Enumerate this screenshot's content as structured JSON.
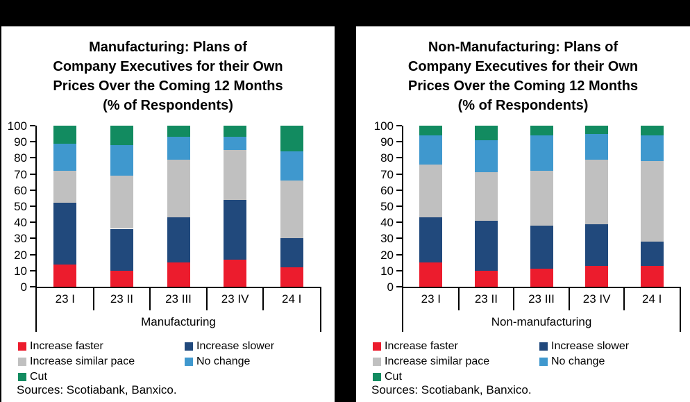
{
  "page": {
    "background": "#000000"
  },
  "legend_labels": [
    "Increase faster",
    "Increase slower",
    "Increase similar pace",
    "No change",
    "Cut"
  ],
  "series_colors": {
    "increase_faster": "#EC1C2D",
    "increase_slower": "#21497C",
    "increase_similar_pace": "#C0C0C0",
    "no_change": "#3F98CE",
    "cut": "#128B60"
  },
  "chart_data": [
    {
      "type": "bar",
      "stacked": true,
      "title_lines": [
        "Manufacturing: Plans of",
        "Company Executives for their Own",
        "Prices Over the Coming 12 Months",
        "(% of Respondents)"
      ],
      "categories": [
        "23 I",
        "23 II",
        "23 III",
        "23 IV",
        "24 I"
      ],
      "group_label": "Manufacturing",
      "ylim": [
        0,
        100
      ],
      "ytick_step": 10,
      "grid": false,
      "legend_position": "bottom-left-two-columns",
      "series": [
        {
          "name": "Increase faster",
          "color": "#EC1C2D",
          "values": [
            14,
            10,
            15,
            17,
            12
          ]
        },
        {
          "name": "Increase slower",
          "color": "#21497C",
          "values": [
            38,
            26,
            28,
            37,
            18
          ]
        },
        {
          "name": "Increase similar pace",
          "color": "#C0C0C0",
          "values": [
            20,
            33,
            36,
            31,
            36
          ]
        },
        {
          "name": "No change",
          "color": "#3F98CE",
          "values": [
            17,
            19,
            14,
            8,
            18
          ]
        },
        {
          "name": "Cut",
          "color": "#128B60",
          "values": [
            11,
            12,
            7,
            7,
            16
          ]
        }
      ],
      "sources": "Sources: Scotiabank, Banxico."
    },
    {
      "type": "bar",
      "stacked": true,
      "title_lines": [
        "Non-Manufacturing: Plans of",
        "Company Executives for their Own",
        "Prices Over the Coming 12 Months",
        "(% of Respondents)"
      ],
      "categories": [
        "23 I",
        "23 II",
        "23 III",
        "23 IV",
        "24 I"
      ],
      "group_label": "Non-manufacturing",
      "ylim": [
        0,
        100
      ],
      "ytick_step": 10,
      "grid": false,
      "legend_position": "bottom-left-two-columns",
      "series": [
        {
          "name": "Increase faster",
          "color": "#EC1C2D",
          "values": [
            15,
            10,
            11,
            13,
            13
          ]
        },
        {
          "name": "Increase slower",
          "color": "#21497C",
          "values": [
            28,
            31,
            27,
            26,
            15
          ]
        },
        {
          "name": "Increase similar pace",
          "color": "#C0C0C0",
          "values": [
            33,
            30,
            34,
            40,
            50
          ]
        },
        {
          "name": "No change",
          "color": "#3F98CE",
          "values": [
            18,
            20,
            22,
            16,
            16
          ]
        },
        {
          "name": "Cut",
          "color": "#128B60",
          "values": [
            6,
            9,
            6,
            5,
            6
          ]
        }
      ],
      "sources": "Sources: Scotiabank, Banxico."
    }
  ]
}
